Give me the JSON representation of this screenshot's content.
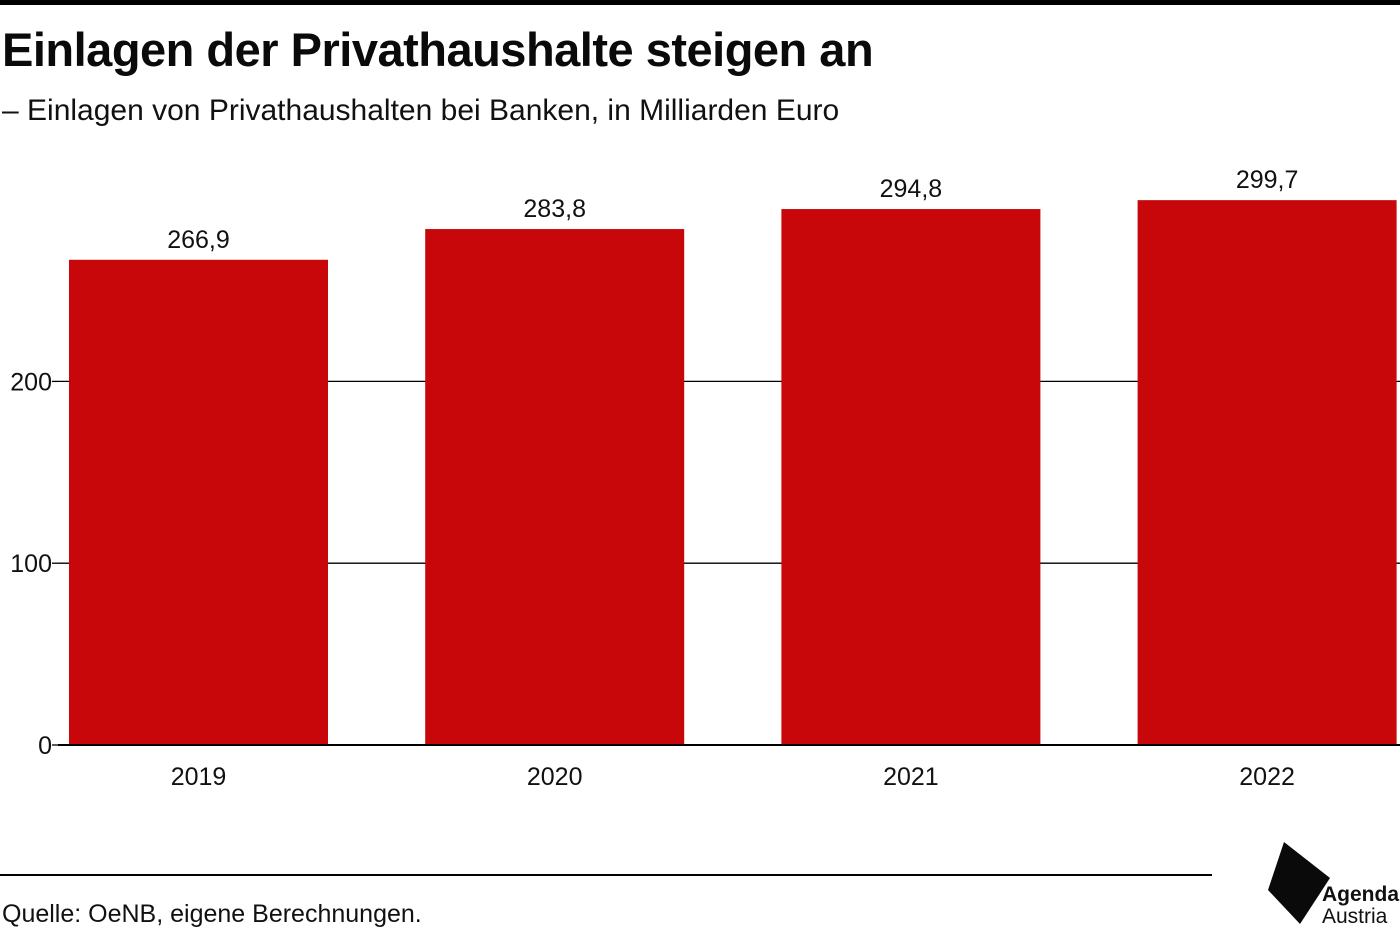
{
  "header": {
    "title": "Einlagen der Privathaushalte steigen an",
    "subtitle": "– Einlagen von Privathaushalten bei Banken, in Milliarden Euro"
  },
  "footer": {
    "source": "Quelle: OeNB, eigene Berechnungen.",
    "logo_line1": "Agenda",
    "logo_line2": "Austria"
  },
  "colors": {
    "bar": "#c8070b",
    "grid": "#000000",
    "text": "#111111"
  },
  "chart_data": {
    "type": "bar",
    "title": "Einlagen der Privathaushalte steigen an",
    "subtitle": "– Einlagen von Privathaushalten bei Banken, in Milliarden Euro",
    "categories": [
      "2019",
      "2020",
      "2021",
      "2022"
    ],
    "values": [
      266.9,
      283.8,
      294.8,
      299.7
    ],
    "value_labels": [
      "266,9",
      "283,8",
      "294,8",
      "299,7"
    ],
    "yticks": [
      0,
      100,
      200
    ],
    "ytick_labels": [
      "0",
      "100",
      "200"
    ],
    "ylim": [
      0,
      300
    ],
    "grid": true,
    "legend": "none"
  }
}
